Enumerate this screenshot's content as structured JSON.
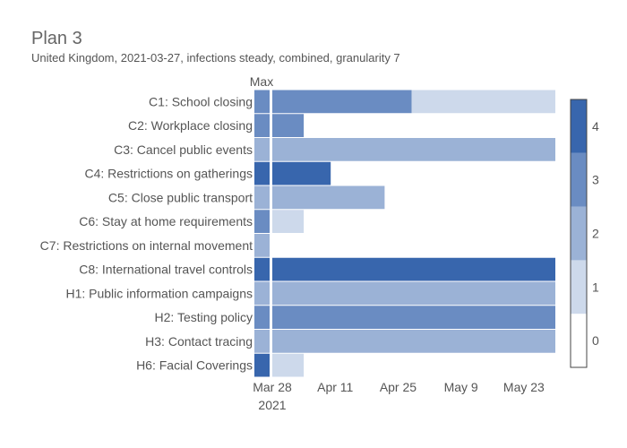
{
  "chart_data": {
    "type": "heatmap",
    "title": "Plan 3",
    "subtitle": "United Kingdom, 2021-03-27, infections steady, combined, granularity 7",
    "max_column_label": "Max",
    "rows": [
      {
        "label": "C1: School closing",
        "max": 3,
        "segments": [
          {
            "start": "2021-03-28",
            "end": "2021-04-28",
            "level": 3
          },
          {
            "start": "2021-04-28",
            "end": "2021-05-30",
            "level": 1
          }
        ]
      },
      {
        "label": "C2: Workplace closing",
        "max": 3,
        "segments": [
          {
            "start": "2021-03-28",
            "end": "2021-04-04",
            "level": 3
          }
        ]
      },
      {
        "label": "C3: Cancel public events",
        "max": 2,
        "segments": [
          {
            "start": "2021-03-28",
            "end": "2021-05-30",
            "level": 2
          }
        ]
      },
      {
        "label": "C4: Restrictions on gatherings",
        "max": 4,
        "segments": [
          {
            "start": "2021-03-28",
            "end": "2021-04-10",
            "level": 4
          }
        ]
      },
      {
        "label": "C5: Close public transport",
        "max": 2,
        "segments": [
          {
            "start": "2021-03-28",
            "end": "2021-04-22",
            "level": 2
          }
        ]
      },
      {
        "label": "C6: Stay at home requirements",
        "max": 3,
        "segments": [
          {
            "start": "2021-03-28",
            "end": "2021-04-04",
            "level": 1
          }
        ]
      },
      {
        "label": "C7: Restrictions on internal movement",
        "max": 2,
        "segments": []
      },
      {
        "label": "C8: International travel controls",
        "max": 4,
        "segments": [
          {
            "start": "2021-03-28",
            "end": "2021-05-30",
            "level": 4
          }
        ]
      },
      {
        "label": "H1: Public information campaigns",
        "max": 2,
        "segments": [
          {
            "start": "2021-03-28",
            "end": "2021-05-30",
            "level": 2
          }
        ]
      },
      {
        "label": "H2: Testing policy",
        "max": 3,
        "segments": [
          {
            "start": "2021-03-28",
            "end": "2021-05-30",
            "level": 3
          }
        ]
      },
      {
        "label": "H3: Contact tracing",
        "max": 2,
        "segments": [
          {
            "start": "2021-03-28",
            "end": "2021-05-30",
            "level": 2
          }
        ]
      },
      {
        "label": "H6: Facial Coverings",
        "max": 4,
        "segments": [
          {
            "start": "2021-03-28",
            "end": "2021-04-04",
            "level": 1
          }
        ]
      }
    ],
    "x_range": [
      "2021-03-28",
      "2021-05-30"
    ],
    "x_ticks": [
      {
        "date": "2021-03-28",
        "label": "Mar 28",
        "sublabel": "2021"
      },
      {
        "date": "2021-04-11",
        "label": "Apr 11",
        "sublabel": ""
      },
      {
        "date": "2021-04-25",
        "label": "Apr 25",
        "sublabel": ""
      },
      {
        "date": "2021-05-09",
        "label": "May 9",
        "sublabel": ""
      },
      {
        "date": "2021-05-23",
        "label": "May 23",
        "sublabel": ""
      }
    ],
    "colorscale": {
      "range": [
        0,
        4
      ],
      "ticks": [
        "0",
        "1",
        "2",
        "3",
        "4"
      ],
      "colors": [
        "#ffffff",
        "#cdd9eb",
        "#9bb2d6",
        "#6a8cc2",
        "#3866ad"
      ]
    },
    "legend_position": "right"
  }
}
